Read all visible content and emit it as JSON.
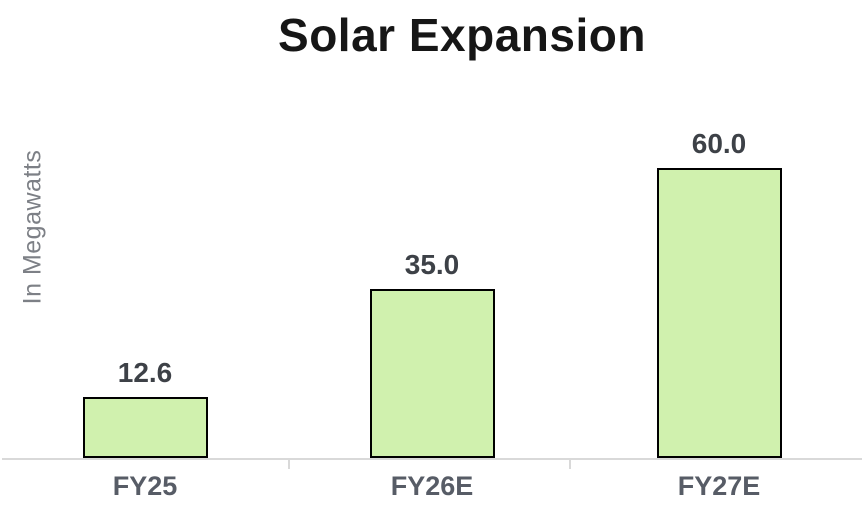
{
  "chart_data": {
    "type": "bar",
    "title": "Solar Expansion",
    "xlabel": "",
    "ylabel": "In Megawatts",
    "categories": [
      "FY25",
      "FY26E",
      "FY27E"
    ],
    "values": [
      12.6,
      35.0,
      60.0
    ],
    "value_labels": [
      "12.6",
      "35.0",
      "60.0"
    ],
    "ylim": [
      0,
      62
    ],
    "grid": false,
    "legend": false,
    "axis": "x-axis only, no y-axis ticks or gridlines",
    "colors": {
      "bar_fill": "#d0f1ae",
      "bar_border": "#000000",
      "axis_line": "#d9d9d9",
      "title_text": "#161616",
      "value_label_text": "#3d4147",
      "category_label_text": "#575c66",
      "ylabel_text": "#7d8086"
    }
  }
}
